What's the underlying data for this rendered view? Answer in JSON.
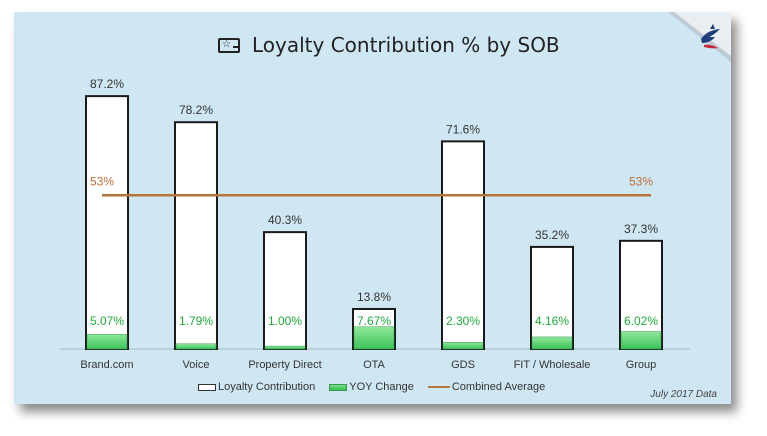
{
  "title": "Loyalty Contribution % by SOB",
  "title_icon": "star-card-icon",
  "logo_icon": "eagle-flag-icon",
  "footnote": "July 2017 Data",
  "legend": {
    "loyalty": "Loyalty Contribution",
    "yoy": "YOY Change",
    "avg": "Combined Average"
  },
  "colors": {
    "background": "#cfe7f3",
    "bar_fill": "#ffffff",
    "bar_stroke": "#1a1a1a",
    "yoy_fill": "#3cc35a",
    "yoy_label": "#1faa3c",
    "average_line": "#b5753d",
    "average_label": "#c0703a"
  },
  "chart_data": {
    "type": "bar",
    "title": "Loyalty Contribution % by SOB",
    "categories": [
      "Brand.com",
      "Voice",
      "Property Direct",
      "OTA",
      "GDS",
      "FIT / Wholesale",
      "Group"
    ],
    "series": [
      {
        "name": "Loyalty Contribution",
        "values": [
          87.2,
          78.2,
          40.3,
          13.8,
          71.6,
          35.2,
          37.3
        ],
        "labels": [
          "87.2%",
          "78.2%",
          "40.3%",
          "13.8%",
          "71.6%",
          "35.2%",
          "37.3%"
        ]
      },
      {
        "name": "YOY Change",
        "values": [
          5.07,
          1.79,
          1.0,
          7.67,
          2.3,
          4.16,
          6.02
        ],
        "labels": [
          "5.07%",
          "1.79%",
          "1.00%",
          "7.67%",
          "2.30%",
          "4.16%",
          "6.02%"
        ]
      },
      {
        "name": "Combined Average",
        "value": 53,
        "label": "53%"
      }
    ],
    "ylim": [
      0,
      100
    ],
    "grid": false,
    "legend_position": "bottom"
  }
}
